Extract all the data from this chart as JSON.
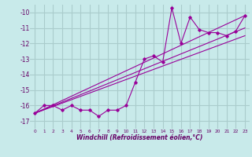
{
  "bg_color": "#c8eaea",
  "grid_color": "#aacccc",
  "line_color": "#990099",
  "xlabel": "Windchill (Refroidissement éolien,°C)",
  "ylim": [
    -17.5,
    -9.5
  ],
  "xlim": [
    -0.5,
    23.5
  ],
  "yticks": [
    -17,
    -16,
    -15,
    -14,
    -13,
    -12,
    -11,
    -10
  ],
  "xticks": [
    0,
    1,
    2,
    3,
    4,
    5,
    6,
    7,
    8,
    9,
    10,
    11,
    12,
    13,
    14,
    15,
    16,
    17,
    18,
    19,
    20,
    21,
    22,
    23
  ],
  "scatter_x": [
    0,
    1,
    2,
    3,
    4,
    5,
    6,
    7,
    8,
    9,
    10,
    11,
    12,
    13,
    14,
    15,
    16,
    17,
    18,
    19,
    20,
    21,
    22,
    23
  ],
  "scatter_y": [
    -16.5,
    -16.0,
    -16.0,
    -16.3,
    -16.0,
    -16.3,
    -16.3,
    -16.7,
    -16.3,
    -16.3,
    -16.0,
    -14.5,
    -13.0,
    -12.8,
    -13.2,
    -9.7,
    -12.0,
    -10.3,
    -11.1,
    -11.3,
    -11.3,
    -11.5,
    -11.2,
    -10.2
  ],
  "line1_x": [
    0,
    23
  ],
  "line1_y": [
    -16.5,
    -10.2
  ],
  "line2_x": [
    0,
    23
  ],
  "line2_y": [
    -16.5,
    -11.0
  ],
  "line3_x": [
    0,
    23
  ],
  "line3_y": [
    -16.5,
    -11.5
  ]
}
